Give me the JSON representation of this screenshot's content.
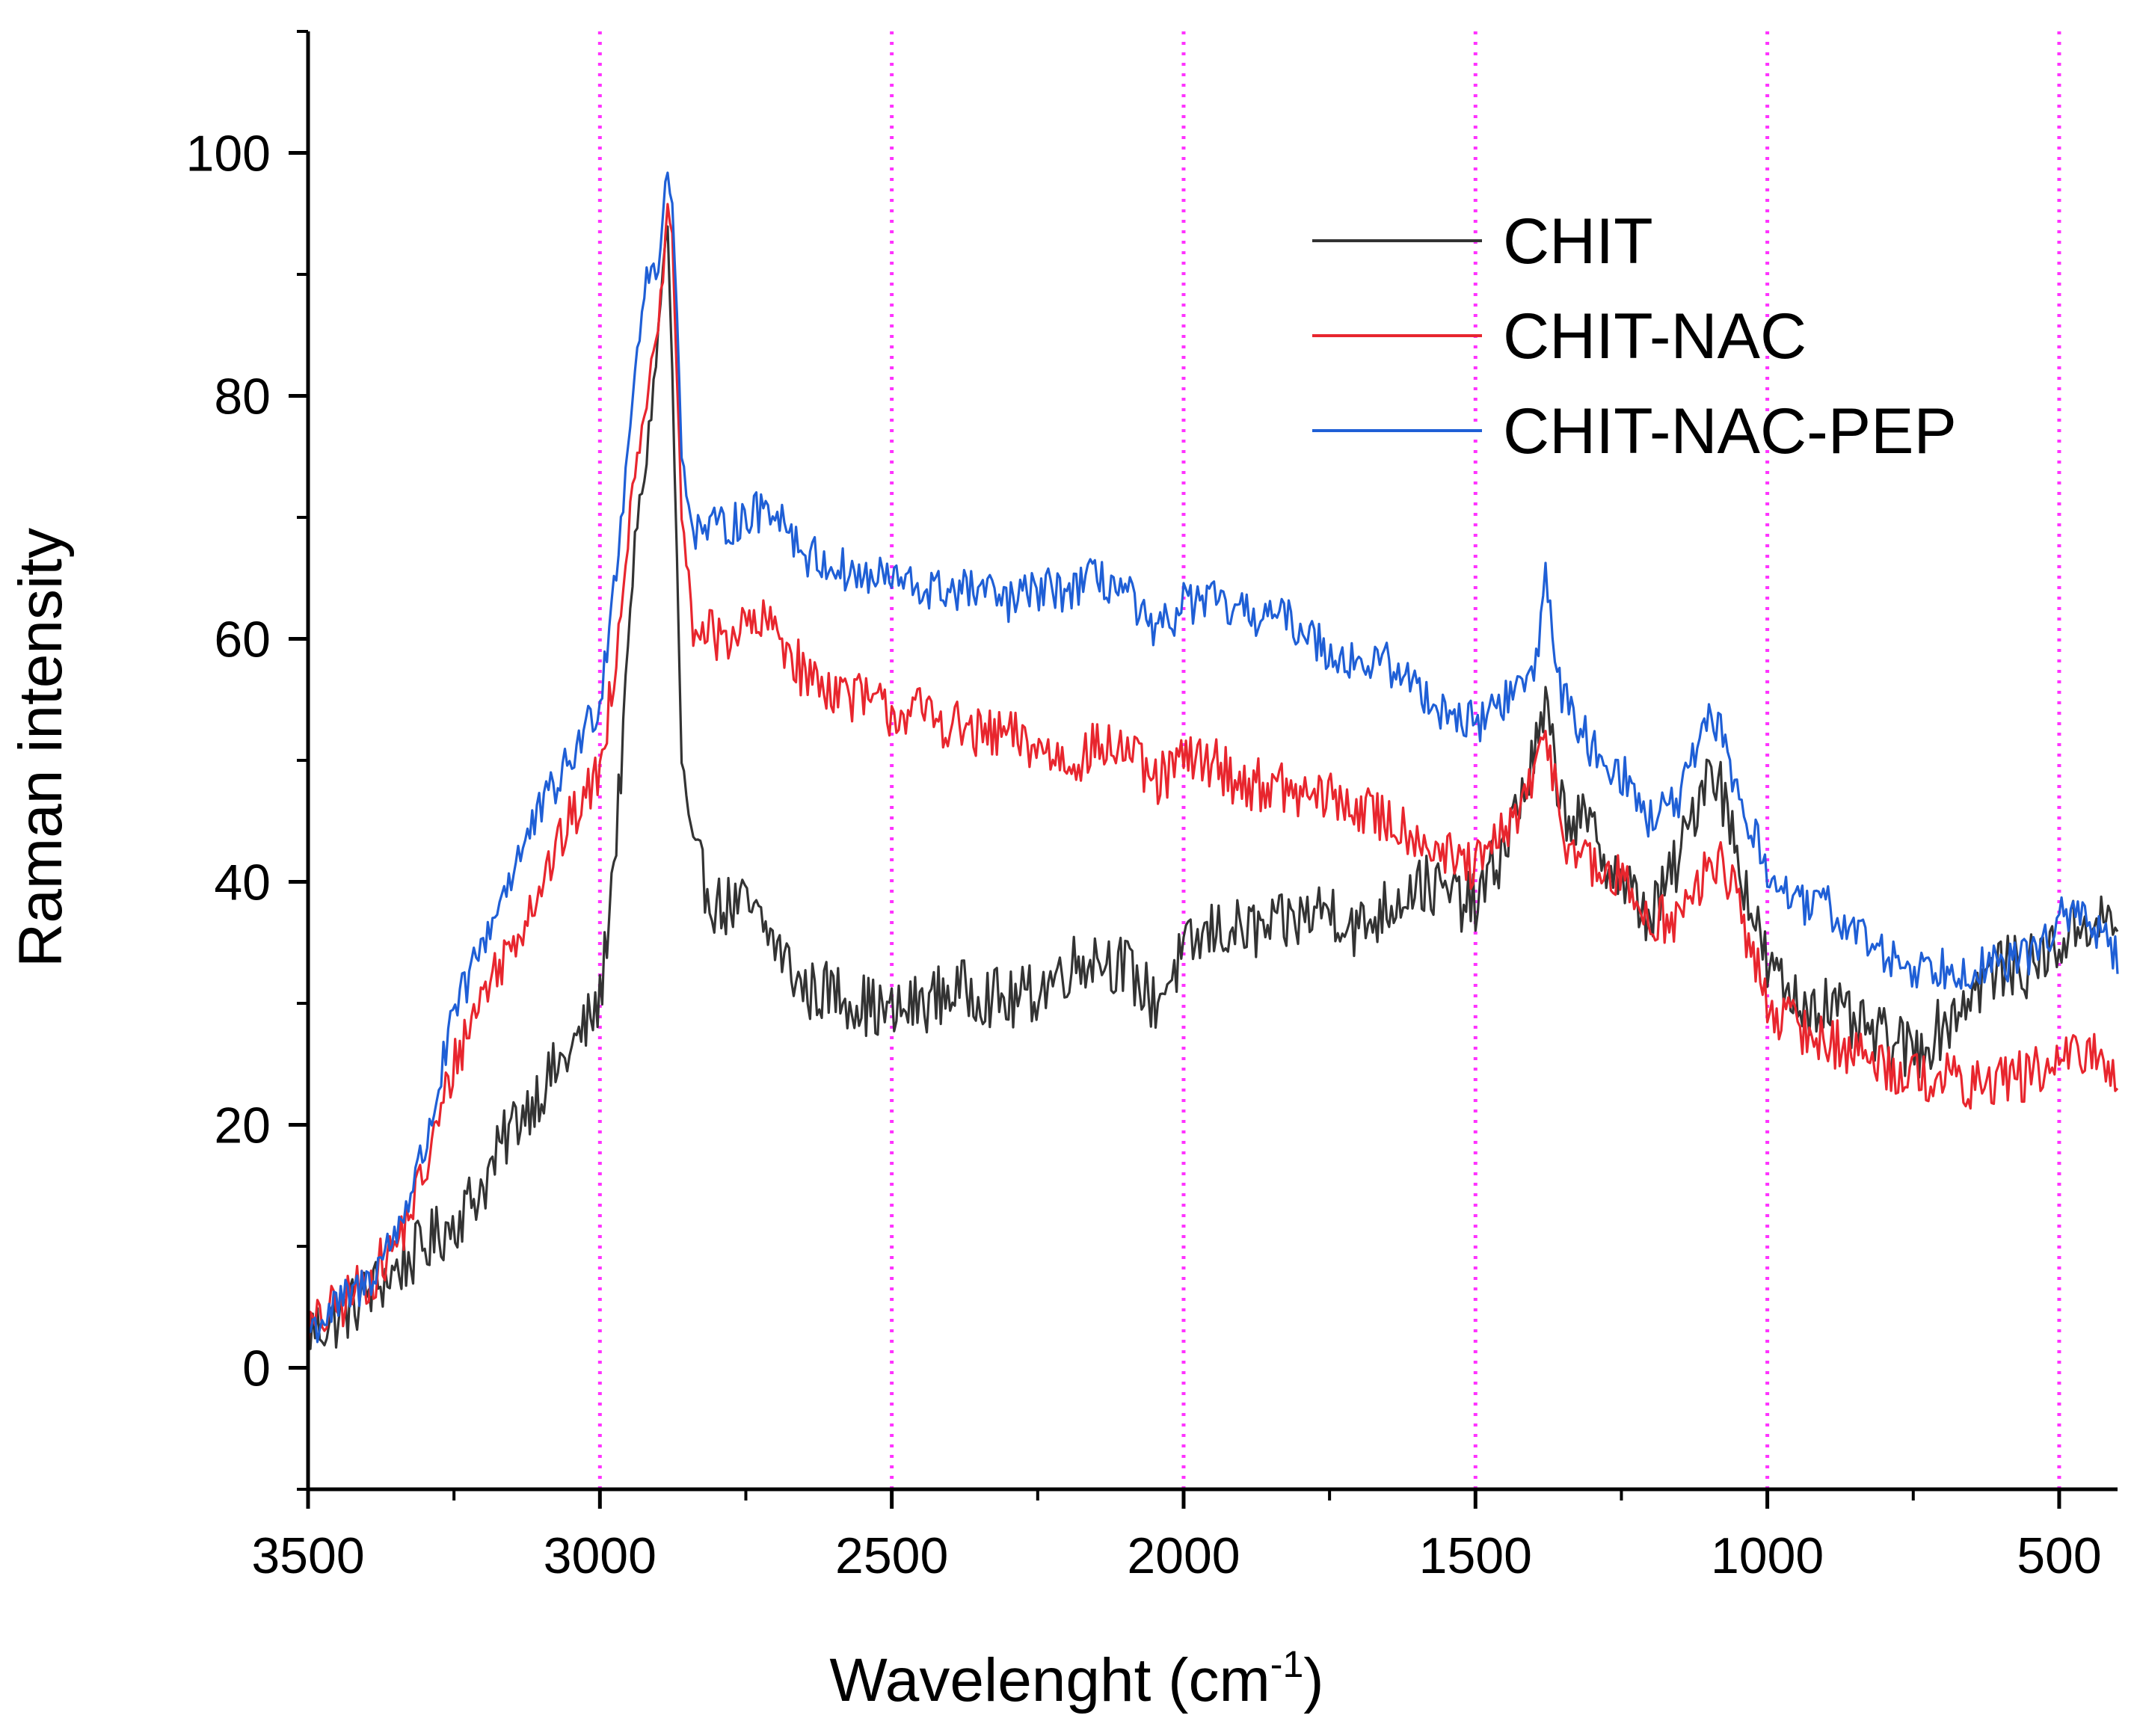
{
  "chart_data": {
    "type": "line",
    "title": "",
    "xlabel": "Wavelenght (cm",
    "xlabel_sup": "-1",
    "xlabel_close": ")",
    "ylabel": "Raman intensity",
    "xlim": [
      3500,
      400
    ],
    "ylim": [
      -10,
      110
    ],
    "x_reversed": true,
    "x_ticks": [
      3500,
      3000,
      2500,
      2000,
      1500,
      1000,
      500
    ],
    "x_tick_labels": [
      "3500",
      "3000",
      "2500",
      "2000",
      "1500",
      "1000",
      "500"
    ],
    "y_ticks": [
      0,
      20,
      40,
      60,
      80,
      100
    ],
    "y_tick_labels": [
      "0",
      "20",
      "40",
      "60",
      "80",
      "100"
    ],
    "vertical_reference_lines": [
      3000,
      2500,
      2000,
      1500,
      1000,
      500
    ],
    "reference_line_color": "#ff33ff",
    "legend_position": "top-right",
    "series": [
      {
        "name": "CHIT",
        "color": "#333333",
        "x": [
          3500,
          3450,
          3400,
          3350,
          3300,
          3250,
          3200,
          3150,
          3100,
          3050,
          3000,
          2970,
          2940,
          2920,
          2900,
          2885,
          2875,
          2860,
          2840,
          2800,
          2750,
          2700,
          2650,
          2600,
          2550,
          2500,
          2450,
          2400,
          2350,
          2300,
          2250,
          2200,
          2150,
          2100,
          2050,
          2000,
          1950,
          1900,
          1850,
          1800,
          1750,
          1700,
          1650,
          1600,
          1550,
          1500,
          1450,
          1400,
          1380,
          1350,
          1300,
          1250,
          1200,
          1150,
          1100,
          1080,
          1050,
          1000,
          950,
          900,
          850,
          800,
          750,
          700,
          650,
          600,
          550,
          500,
          450,
          400
        ],
        "y": [
          3,
          4,
          6,
          8,
          10,
          12,
          15,
          20,
          23,
          26,
          30,
          45,
          68,
          75,
          85,
          95,
          80,
          50,
          42,
          38,
          38,
          35,
          31,
          31,
          30,
          29,
          30,
          31,
          31,
          30,
          31,
          33,
          34,
          33,
          30,
          34,
          36,
          36,
          36,
          37,
          38,
          36,
          38,
          40,
          39,
          38,
          43,
          50,
          54,
          46,
          44,
          40,
          37,
          42,
          50,
          48,
          42,
          33,
          30,
          30,
          28,
          27,
          26,
          28,
          31,
          33,
          33,
          35,
          37,
          36
        ]
      },
      {
        "name": "CHIT-NAC",
        "color": "#e8262e",
        "x": [
          3500,
          3450,
          3400,
          3350,
          3300,
          3250,
          3200,
          3150,
          3100,
          3050,
          3000,
          2970,
          2940,
          2920,
          2900,
          2885,
          2875,
          2860,
          2840,
          2800,
          2750,
          2700,
          2650,
          2600,
          2550,
          2500,
          2450,
          2400,
          2350,
          2300,
          2250,
          2200,
          2150,
          2100,
          2050,
          2000,
          1950,
          1900,
          1850,
          1800,
          1750,
          1700,
          1650,
          1600,
          1550,
          1500,
          1450,
          1400,
          1380,
          1350,
          1300,
          1250,
          1200,
          1150,
          1100,
          1080,
          1050,
          1000,
          950,
          900,
          850,
          800,
          750,
          700,
          650,
          600,
          550,
          500,
          450,
          400
        ],
        "y": [
          3,
          5,
          7,
          10,
          16,
          25,
          31,
          35,
          40,
          45,
          49,
          60,
          74,
          80,
          85,
          95,
          92,
          70,
          61,
          60,
          61,
          61,
          57,
          56,
          55,
          54,
          54,
          53,
          52,
          52,
          51,
          50,
          51,
          51,
          48,
          50,
          50,
          48,
          48,
          47,
          47,
          46,
          45,
          44,
          42,
          41,
          44,
          48,
          53,
          44,
          41,
          40,
          37,
          37,
          41,
          42,
          38,
          30,
          28,
          27,
          26,
          25,
          24,
          24,
          23,
          24,
          24,
          25,
          26,
          24
        ]
      },
      {
        "name": "CHIT-NAC-PEP",
        "color": "#1f5fd6",
        "x": [
          3500,
          3450,
          3400,
          3350,
          3300,
          3250,
          3200,
          3150,
          3100,
          3050,
          3000,
          2970,
          2940,
          2920,
          2900,
          2885,
          2875,
          2860,
          2840,
          2800,
          2750,
          2700,
          2650,
          2600,
          2550,
          2500,
          2450,
          2400,
          2350,
          2300,
          2250,
          2200,
          2150,
          2100,
          2050,
          2000,
          1950,
          1900,
          1850,
          1800,
          1750,
          1700,
          1650,
          1600,
          1550,
          1500,
          1450,
          1400,
          1380,
          1350,
          1300,
          1250,
          1200,
          1150,
          1100,
          1080,
          1050,
          1000,
          950,
          900,
          850,
          800,
          750,
          700,
          650,
          600,
          550,
          500,
          450,
          400
        ],
        "y": [
          3,
          5,
          7,
          11,
          18,
          29,
          35,
          41,
          46,
          50,
          55,
          67,
          82,
          90,
          90,
          99,
          96,
          75,
          69,
          69,
          70,
          71,
          67,
          66,
          65,
          65,
          64,
          64,
          64,
          63,
          64,
          64,
          65,
          64,
          60,
          63,
          63,
          62,
          62,
          61,
          59,
          58,
          58,
          56,
          54,
          53,
          55,
          57,
          65,
          55,
          51,
          49,
          45,
          47,
          53,
          53,
          47,
          41,
          38,
          38,
          36,
          34,
          33,
          33,
          33,
          33,
          34,
          37,
          37,
          34
        ]
      }
    ]
  }
}
